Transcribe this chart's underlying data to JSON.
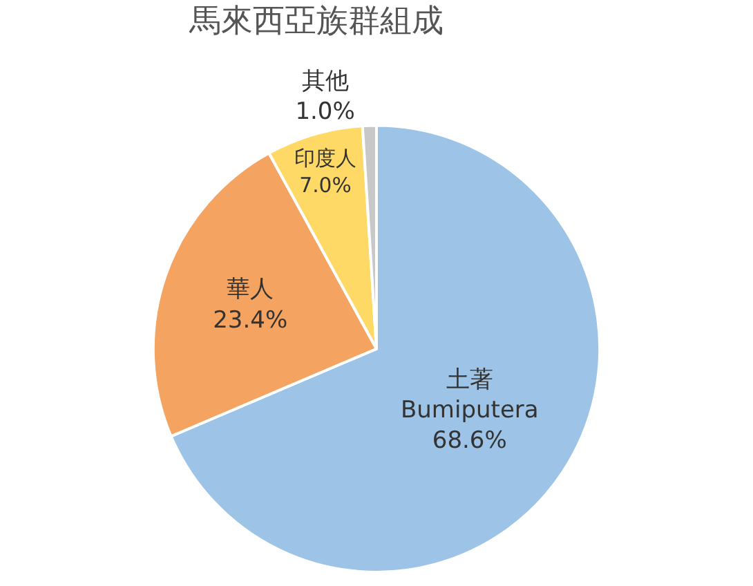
{
  "chart_data": {
    "type": "pie",
    "title": "馬來西亞族群組成",
    "categories": [
      "土著\nBumiputera",
      "華人",
      "印度人",
      "其他"
    ],
    "values": [
      68.6,
      23.4,
      7.0,
      1.0
    ],
    "colors": [
      "#9dc3e6",
      "#f4a460",
      "#ffd966",
      "#c8c8c8"
    ],
    "value_labels": [
      "68.6%",
      "23.4%",
      "7.0%",
      "1.0%"
    ],
    "legend": false
  }
}
